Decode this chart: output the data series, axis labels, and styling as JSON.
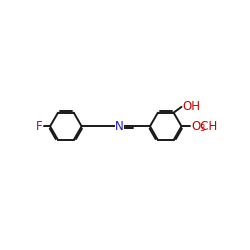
{
  "bg_color": "#ffffff",
  "bond_color": "#1a1a1a",
  "N_color": "#1a1acc",
  "O_color": "#cc0000",
  "F_color": "#9900bb",
  "lw": 1.4,
  "dbo": 0.055,
  "figsize": [
    2.5,
    2.5
  ],
  "dpi": 100,
  "xlim": [
    0.5,
    9.8
  ],
  "ylim": [
    2.8,
    7.5
  ]
}
